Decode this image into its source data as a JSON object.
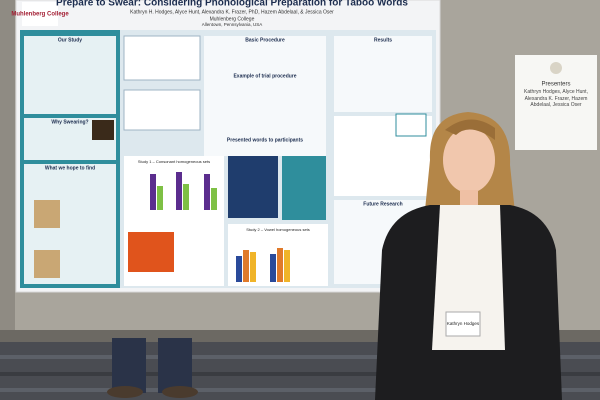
{
  "poster": {
    "logo": "Muhlenberg College",
    "title": "Prepare to Swear: Considering Phonological Preparation for Taboo Words",
    "authors": "Kathryn H. Hodges, Alyce Hunt, Alexandra K. Frazer, PhD, Hazem Abdelaal, & Jessica Oser",
    "institution": "Muhlenberg College",
    "location": "Allentown, Pennsylvania, USA",
    "sections": [
      "Our Study",
      "Why Swearing?",
      "What we hope to find",
      "Basic Procedure",
      "Example of trial procedure",
      "Presented words to participants",
      "Results",
      "Future Research"
    ],
    "chart_titles": [
      "Study 1 – Consonant homogeneous sets",
      "Study 2 – Vowel homogeneous sets"
    ]
  },
  "sign": {
    "heading": "Presenters",
    "names": "Kathryn Hodges, Alyce Hunt, Alexandra K. Frazer, Hazem Abdelaal, Jessica Oser"
  },
  "badge": {
    "name": "Kathryn Hodges"
  }
}
